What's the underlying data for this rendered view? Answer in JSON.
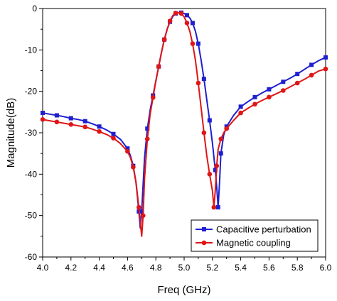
{
  "chart_data": {
    "type": "line",
    "xlabel": "Freq (GHz)",
    "ylabel": "Magnitude(dB)",
    "xlim": [
      4.0,
      6.0
    ],
    "ylim": [
      -60,
      0
    ],
    "xticks": [
      "4.0",
      "4.2",
      "4.4",
      "4.6",
      "4.8",
      "5.0",
      "5.2",
      "5.4",
      "5.6",
      "5.8",
      "6.0"
    ],
    "yticks": [
      "0",
      "-10",
      "-20",
      "-30",
      "-40",
      "-50",
      "-60"
    ],
    "grid": false,
    "legend_position": "bottom-right",
    "series": [
      {
        "name": "Capacitive perturbation",
        "color": "#1f1fd0",
        "marker": "square",
        "x": [
          4.0,
          4.05,
          4.1,
          4.15,
          4.2,
          4.25,
          4.3,
          4.35,
          4.4,
          4.45,
          4.5,
          4.55,
          4.6,
          4.62,
          4.64,
          4.66,
          4.68,
          4.69,
          4.7,
          4.72,
          4.74,
          4.76,
          4.78,
          4.8,
          4.82,
          4.84,
          4.86,
          4.88,
          4.9,
          4.92,
          4.94,
          4.96,
          4.98,
          5.0,
          5.02,
          5.04,
          5.06,
          5.08,
          5.1,
          5.12,
          5.14,
          5.16,
          5.18,
          5.2,
          5.22,
          5.23,
          5.24,
          5.25,
          5.26,
          5.28,
          5.3,
          5.35,
          5.4,
          5.45,
          5.5,
          5.55,
          5.6,
          5.65,
          5.7,
          5.75,
          5.8,
          5.85,
          5.9,
          5.95,
          6.0
        ],
        "y": [
          -25.2,
          -25.5,
          -25.8,
          -26.1,
          -26.5,
          -26.8,
          -27.2,
          -27.8,
          -28.5,
          -29.3,
          -30.3,
          -31.6,
          -33.8,
          -35.5,
          -38.0,
          -42.0,
          -49.0,
          -53.0,
          -49.0,
          -36.0,
          -29.0,
          -24.5,
          -21.0,
          -17.5,
          -14.0,
          -10.5,
          -7.5,
          -5.0,
          -3.2,
          -1.9,
          -1.2,
          -1.0,
          -1.0,
          -1.2,
          -1.6,
          -2.3,
          -3.5,
          -5.5,
          -8.5,
          -12.5,
          -17.0,
          -22.0,
          -27.0,
          -32.5,
          -39.0,
          -43.0,
          -48.0,
          -42.0,
          -35.0,
          -30.5,
          -28.5,
          -25.8,
          -23.7,
          -22.5,
          -21.4,
          -20.4,
          -19.5,
          -18.6,
          -17.7,
          -16.8,
          -15.8,
          -14.7,
          -13.6,
          -12.6,
          -11.8
        ]
      },
      {
        "name": "Magnetic coupling",
        "color": "#e01515",
        "marker": "circle",
        "x": [
          4.0,
          4.05,
          4.1,
          4.15,
          4.2,
          4.25,
          4.3,
          4.35,
          4.4,
          4.45,
          4.5,
          4.55,
          4.6,
          4.62,
          4.64,
          4.66,
          4.68,
          4.7,
          4.71,
          4.72,
          4.74,
          4.76,
          4.78,
          4.8,
          4.82,
          4.84,
          4.86,
          4.88,
          4.9,
          4.92,
          4.94,
          4.96,
          4.98,
          5.0,
          5.02,
          5.04,
          5.06,
          5.08,
          5.1,
          5.12,
          5.14,
          5.16,
          5.18,
          5.2,
          5.21,
          5.22,
          5.23,
          5.24,
          5.26,
          5.28,
          5.3,
          5.35,
          5.4,
          5.45,
          5.5,
          5.55,
          5.6,
          5.65,
          5.7,
          5.75,
          5.8,
          5.85,
          5.9,
          5.95,
          6.0
        ],
        "y": [
          -26.8,
          -27.1,
          -27.4,
          -27.7,
          -28.0,
          -28.3,
          -28.6,
          -29.1,
          -29.7,
          -30.4,
          -31.3,
          -32.6,
          -34.5,
          -36.0,
          -38.3,
          -42.0,
          -48.0,
          -55.0,
          -50.0,
          -41.0,
          -31.5,
          -25.5,
          -21.5,
          -17.5,
          -14.0,
          -10.5,
          -7.5,
          -5.0,
          -3.0,
          -1.7,
          -1.1,
          -1.0,
          -1.2,
          -2.0,
          -3.5,
          -5.5,
          -8.5,
          -12.5,
          -18.0,
          -24.0,
          -30.0,
          -35.5,
          -40.0,
          -44.0,
          -48.0,
          -44.0,
          -38.0,
          -34.0,
          -31.5,
          -30.0,
          -29.0,
          -27.0,
          -25.2,
          -24.1,
          -23.1,
          -22.2,
          -21.4,
          -20.6,
          -19.8,
          -18.9,
          -18.0,
          -17.1,
          -16.1,
          -15.1,
          -14.6
        ]
      }
    ]
  }
}
